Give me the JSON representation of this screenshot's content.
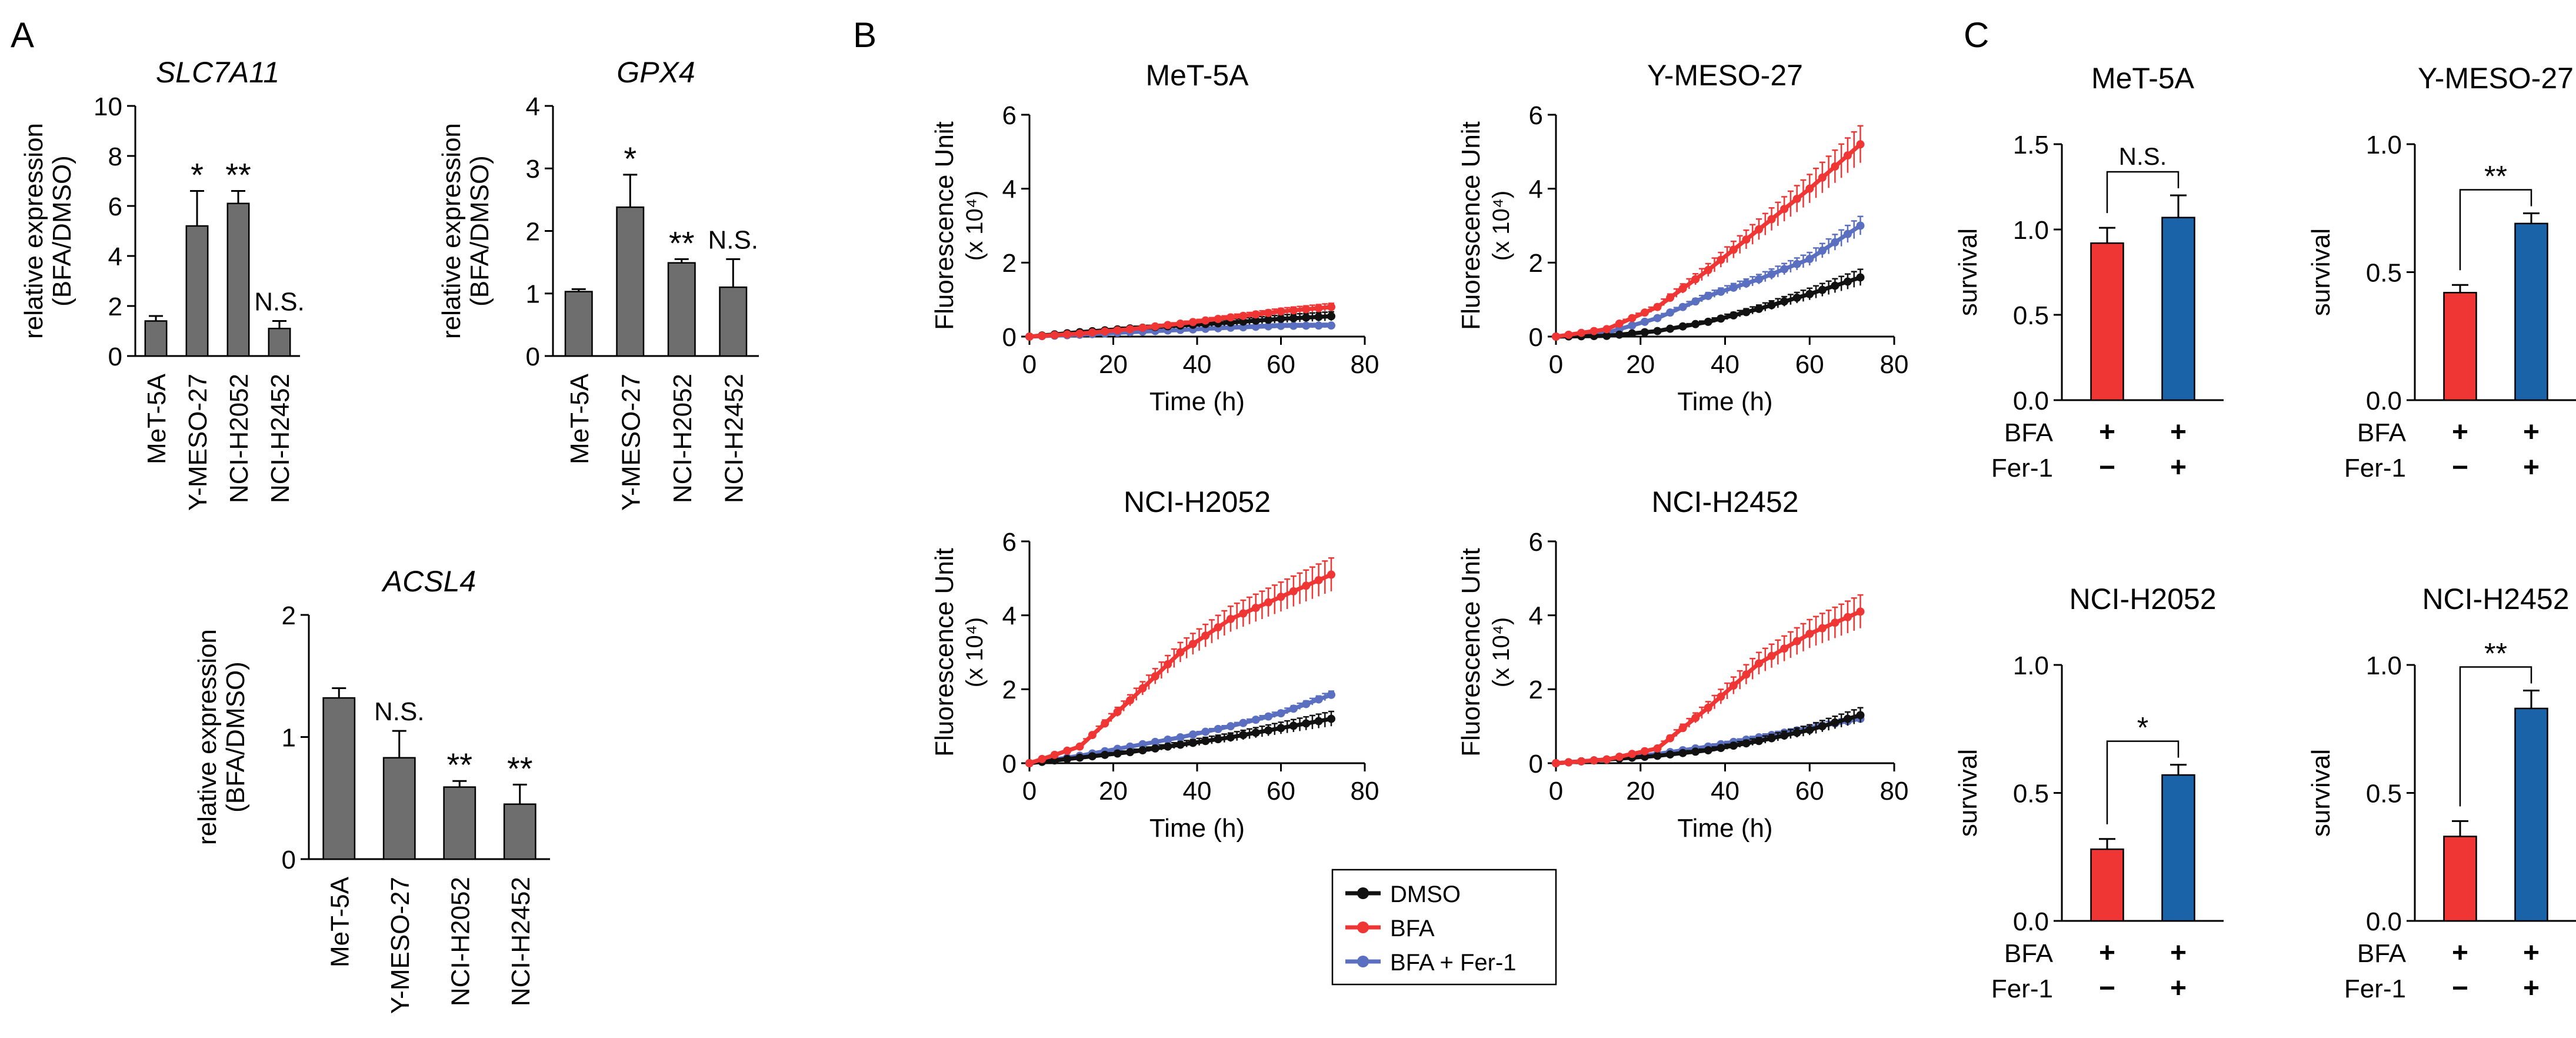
{
  "panel_labels": {
    "a": "A",
    "b": "B",
    "c": "C"
  },
  "colors": {
    "gray_bar": "#6e6e6e",
    "dmso": "#111111",
    "bfa": "#f03535",
    "bfa_fer": "#5b6fc0",
    "red_bar": "#f03535",
    "blue_bar": "#1a63a8"
  },
  "legend": [
    "DMSO",
    "BFA",
    "BFA + Fer-1"
  ],
  "chart_data": [
    {
      "panel": "A",
      "type": "bar",
      "title": "SLC7A11",
      "ylabel": [
        "relative expression",
        "(BFA/DMSO)"
      ],
      "ylim": [
        0,
        10
      ],
      "yticks": [
        "0",
        "2",
        "4",
        "6",
        "8",
        "10"
      ],
      "categories": [
        "MeT-5A",
        "Y-MESO-27",
        "NCI-H2052",
        "NCI-H2452"
      ],
      "values": [
        1.4,
        5.2,
        6.1,
        1.1
      ],
      "errors": [
        0.2,
        1.4,
        0.5,
        0.3
      ],
      "annotations": [
        "",
        "*",
        "**",
        "N.S."
      ]
    },
    {
      "panel": "A",
      "type": "bar",
      "title": "GPX4",
      "ylabel": [
        "relative expression",
        "(BFA/DMSO)"
      ],
      "ylim": [
        0,
        4
      ],
      "yticks": [
        "0",
        "1",
        "2",
        "3",
        "4"
      ],
      "categories": [
        "MeT-5A",
        "Y-MESO-27",
        "NCI-H2052",
        "NCI-H2452"
      ],
      "values": [
        1.03,
        2.38,
        1.49,
        1.1
      ],
      "errors": [
        0.04,
        0.52,
        0.06,
        0.45
      ],
      "annotations": [
        "",
        "*",
        "**",
        "N.S."
      ]
    },
    {
      "panel": "A",
      "type": "bar",
      "title": "ACSL4",
      "ylabel": [
        "relative expression",
        "(BFA/DMSO)"
      ],
      "ylim": [
        0,
        2
      ],
      "yticks": [
        "0",
        "1",
        "2"
      ],
      "categories": [
        "MeT-5A",
        "Y-MESO-27",
        "NCI-H2052",
        "NCI-H2452"
      ],
      "values": [
        1.32,
        0.83,
        0.59,
        0.45
      ],
      "errors": [
        0.08,
        0.22,
        0.05,
        0.16
      ],
      "annotations": [
        "",
        "N.S.",
        "**",
        "**"
      ]
    },
    {
      "panel": "B",
      "type": "line",
      "title": "MeT-5A",
      "ylabel": [
        "Fluorescence Unit",
        "(x 10⁴)"
      ],
      "xlabel": "Time (h)",
      "xlim": [
        0,
        80
      ],
      "ylim": [
        0,
        6
      ],
      "xticks": [
        "0",
        "20",
        "40",
        "60",
        "80"
      ],
      "yticks": [
        "0",
        "2",
        "4",
        "6"
      ],
      "x": [
        0,
        12,
        24,
        36,
        48,
        60,
        72
      ],
      "series": [
        {
          "name": "DMSO",
          "values": [
            0,
            0.12,
            0.22,
            0.3,
            0.38,
            0.48,
            0.55
          ],
          "err": 0.12
        },
        {
          "name": "BFA",
          "values": [
            0,
            0.08,
            0.2,
            0.35,
            0.52,
            0.68,
            0.8
          ],
          "err": 0.1
        },
        {
          "name": "BFA + Fer-1",
          "values": [
            0,
            0.05,
            0.12,
            0.18,
            0.24,
            0.29,
            0.3
          ],
          "err": 0.06
        }
      ]
    },
    {
      "panel": "B",
      "type": "line",
      "title": "Y-MESO-27",
      "ylabel": [
        "Fluorescence Unit",
        "(x 10⁴)"
      ],
      "xlabel": "Time (h)",
      "xlim": [
        0,
        80
      ],
      "ylim": [
        0,
        6
      ],
      "xticks": [
        "0",
        "20",
        "40",
        "60",
        "80"
      ],
      "yticks": [
        "0",
        "2",
        "4",
        "6"
      ],
      "x": [
        0,
        12,
        24,
        36,
        48,
        60,
        72
      ],
      "series": [
        {
          "name": "DMSO",
          "values": [
            0,
            0.02,
            0.15,
            0.4,
            0.75,
            1.15,
            1.6
          ],
          "err": 0.22
        },
        {
          "name": "BFA",
          "values": [
            0,
            0.2,
            0.8,
            1.8,
            2.9,
            4.0,
            5.2
          ],
          "err": 0.5
        },
        {
          "name": "BFA + Fer-1",
          "values": [
            0,
            0.1,
            0.5,
            1.1,
            1.55,
            2.1,
            3.0
          ],
          "err": 0.25
        }
      ]
    },
    {
      "panel": "B",
      "type": "line",
      "title": "NCI-H2052",
      "ylabel": [
        "Fluorescence Unit",
        "(x 10⁴)"
      ],
      "xlabel": "Time (h)",
      "xlim": [
        0,
        80
      ],
      "ylim": [
        0,
        6
      ],
      "xticks": [
        "0",
        "20",
        "40",
        "60",
        "80"
      ],
      "yticks": [
        "0",
        "2",
        "4",
        "6"
      ],
      "x": [
        0,
        12,
        24,
        36,
        48,
        60,
        72
      ],
      "series": [
        {
          "name": "DMSO",
          "values": [
            0,
            0.15,
            0.3,
            0.5,
            0.7,
            0.95,
            1.2
          ],
          "err": 0.2
        },
        {
          "name": "BFA",
          "values": [
            0,
            0.45,
            1.7,
            3.0,
            3.9,
            4.5,
            5.1
          ],
          "err": 0.45
        },
        {
          "name": "BFA + Fer-1",
          "values": [
            0,
            0.2,
            0.45,
            0.7,
            1.0,
            1.35,
            1.85
          ],
          "err": 0.1
        }
      ]
    },
    {
      "panel": "B",
      "type": "line",
      "title": "NCI-H2452",
      "ylabel": [
        "Fluorescence Unit",
        "(x 10⁴)"
      ],
      "xlabel": "Time (h)",
      "xlim": [
        0,
        80
      ],
      "ylim": [
        0,
        6
      ],
      "xticks": [
        "0",
        "20",
        "40",
        "60",
        "80"
      ],
      "yticks": [
        "0",
        "2",
        "4",
        "6"
      ],
      "x": [
        0,
        12,
        24,
        36,
        48,
        60,
        72
      ],
      "series": [
        {
          "name": "DMSO",
          "values": [
            0,
            0.1,
            0.2,
            0.35,
            0.6,
            0.9,
            1.3
          ],
          "err": 0.2
        },
        {
          "name": "BFA",
          "values": [
            0,
            0.1,
            0.4,
            1.5,
            2.7,
            3.5,
            4.1
          ],
          "err": 0.45
        },
        {
          "name": "BFA + Fer-1",
          "values": [
            0,
            0.1,
            0.25,
            0.45,
            0.7,
            0.95,
            1.2
          ],
          "err": 0.1
        }
      ]
    },
    {
      "panel": "C",
      "type": "bar",
      "title": "MeT-5A",
      "ylabel": "survival",
      "ylim": [
        0,
        1.5
      ],
      "yticks": [
        "0.0",
        "0.5",
        "1.0",
        "1.5"
      ],
      "values": [
        0.92,
        1.07
      ],
      "errors": [
        0.09,
        0.13
      ],
      "significance": "N.S.",
      "row_labels": [
        "BFA",
        "Fer-1"
      ],
      "row_signs": [
        [
          "+",
          "+"
        ],
        [
          "−",
          "+"
        ]
      ]
    },
    {
      "panel": "C",
      "type": "bar",
      "title": "Y-MESO-27",
      "ylabel": "survival",
      "ylim": [
        0,
        1.0
      ],
      "yticks": [
        "0.0",
        "0.5",
        "1.0"
      ],
      "values": [
        0.42,
        0.69
      ],
      "errors": [
        0.03,
        0.04
      ],
      "significance": "**",
      "row_labels": [
        "BFA",
        "Fer-1"
      ],
      "row_signs": [
        [
          "+",
          "+"
        ],
        [
          "−",
          "+"
        ]
      ]
    },
    {
      "panel": "C",
      "type": "bar",
      "title": "NCI-H2052",
      "ylabel": "survival",
      "ylim": [
        0,
        1.0
      ],
      "yticks": [
        "0.0",
        "0.5",
        "1.0"
      ],
      "values": [
        0.28,
        0.57
      ],
      "errors": [
        0.04,
        0.04
      ],
      "significance": "*",
      "row_labels": [
        "BFA",
        "Fer-1"
      ],
      "row_signs": [
        [
          "+",
          "+"
        ],
        [
          "−",
          "+"
        ]
      ]
    },
    {
      "panel": "C",
      "type": "bar",
      "title": "NCI-H2452",
      "ylabel": "survival",
      "ylim": [
        0,
        1.0
      ],
      "yticks": [
        "0.0",
        "0.5",
        "1.0"
      ],
      "values": [
        0.33,
        0.83
      ],
      "errors": [
        0.06,
        0.07
      ],
      "significance": "**",
      "row_labels": [
        "BFA",
        "Fer-1"
      ],
      "row_signs": [
        [
          "+",
          "+"
        ],
        [
          "−",
          "+"
        ]
      ]
    }
  ]
}
